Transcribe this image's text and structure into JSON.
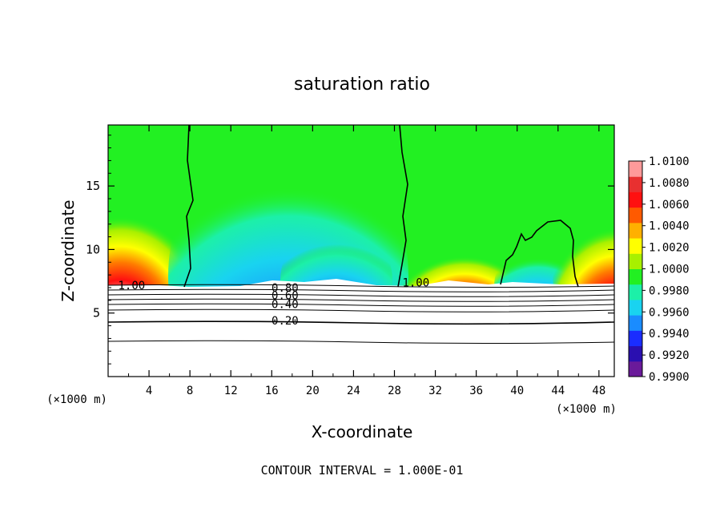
{
  "chart_data": {
    "type": "heatmap",
    "title": "saturation ratio",
    "xlabel": "X-coordinate",
    "ylabel": "Z-coordinate",
    "x_unit_note": "(×1000 m)",
    "z_unit_note": "(×1000 m)",
    "footer": "CONTOUR INTERVAL = 1.000E-01",
    "xlim": [
      0,
      49.5
    ],
    "ylim": [
      0,
      19.8
    ],
    "x_ticks": [
      4,
      8,
      12,
      16,
      20,
      24,
      28,
      32,
      36,
      40,
      44,
      48
    ],
    "x_tick_labels": [
      "4",
      "8",
      "12",
      "16",
      "20",
      "24",
      "28",
      "32",
      "36",
      "40",
      "44",
      "48"
    ],
    "y_ticks": [
      5,
      10,
      15
    ],
    "y_tick_labels": [
      "5",
      "10",
      "15"
    ],
    "colorbar": {
      "min": 0.99,
      "max": 1.01,
      "tick_labels": [
        "1.0100",
        "1.0080",
        "1.0060",
        "1.0040",
        "1.0020",
        "1.0000",
        "0.9980",
        "0.9960",
        "0.9940",
        "0.9920",
        "0.9900"
      ],
      "colors": [
        "#6a1a9a",
        "#2a0fb0",
        "#1a2dff",
        "#1a8cff",
        "#19d3f0",
        "#1cf0a8",
        "#22f022",
        "#a8f000",
        "#ffff00",
        "#ffb000",
        "#ff5a00",
        "#ff1010",
        "#e83030",
        "#ff9a9a"
      ]
    },
    "contour_line_labels": [
      {
        "text": "1.00",
        "x": 2.3,
        "z": 7.2
      },
      {
        "text": "0.80",
        "x": 17.3,
        "z": 7.0
      },
      {
        "text": "0.60",
        "x": 17.3,
        "z": 6.4
      },
      {
        "text": "0.40",
        "x": 17.3,
        "z": 5.7
      },
      {
        "text": "0.20",
        "x": 17.3,
        "z": 4.4
      },
      {
        "text": "1.00",
        "x": 30.1,
        "z": 7.4
      }
    ]
  }
}
